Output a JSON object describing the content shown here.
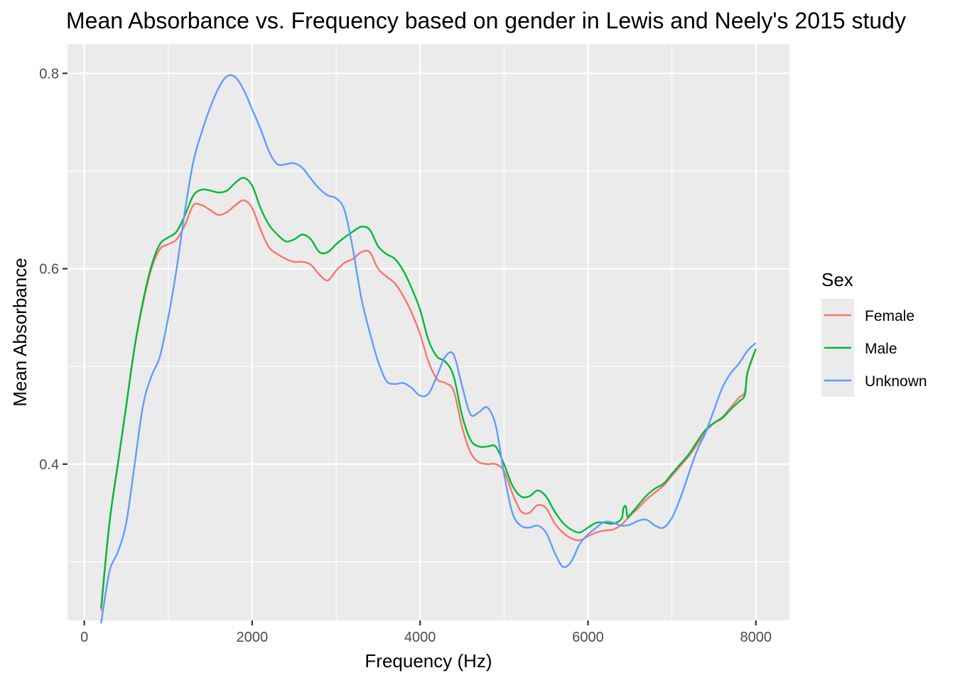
{
  "chart_data": {
    "type": "line",
    "title": "Mean Absorbance vs. Frequency based on gender in Lewis and Neely's 2015 study",
    "xlabel": "Frequency (Hz)",
    "ylabel": "Mean Absorbance",
    "xlim": [
      -200,
      8400
    ],
    "ylim": [
      0.24,
      0.83
    ],
    "x_ticks": [
      0,
      2000,
      4000,
      6000,
      8000
    ],
    "x_tick_labels": [
      "0",
      "2000",
      "4000",
      "6000",
      "8000"
    ],
    "y_ticks": [
      0.4,
      0.6,
      0.8
    ],
    "y_tick_labels": [
      "0.4",
      "0.6",
      "0.8"
    ],
    "y_minor_ticks": [
      0.3,
      0.5,
      0.7
    ],
    "x_minor_ticks": [
      1000,
      3000,
      5000,
      7000
    ],
    "grid": true,
    "legend": {
      "title": "Sex",
      "position": "right"
    },
    "series": [
      {
        "name": "Female",
        "color": "#F8766D",
        "points": [
          [
            200,
            0.25
          ],
          [
            300,
            0.34
          ],
          [
            400,
            0.4
          ],
          [
            500,
            0.46
          ],
          [
            600,
            0.52
          ],
          [
            700,
            0.565
          ],
          [
            800,
            0.6
          ],
          [
            900,
            0.62
          ],
          [
            1000,
            0.625
          ],
          [
            1100,
            0.63
          ],
          [
            1200,
            0.645
          ],
          [
            1300,
            0.665
          ],
          [
            1400,
            0.665
          ],
          [
            1500,
            0.66
          ],
          [
            1600,
            0.655
          ],
          [
            1700,
            0.658
          ],
          [
            1800,
            0.665
          ],
          [
            1900,
            0.67
          ],
          [
            2000,
            0.662
          ],
          [
            2100,
            0.64
          ],
          [
            2200,
            0.622
          ],
          [
            2300,
            0.615
          ],
          [
            2400,
            0.61
          ],
          [
            2500,
            0.607
          ],
          [
            2600,
            0.607
          ],
          [
            2700,
            0.604
          ],
          [
            2800,
            0.594
          ],
          [
            2900,
            0.588
          ],
          [
            3000,
            0.598
          ],
          [
            3100,
            0.606
          ],
          [
            3200,
            0.61
          ],
          [
            3300,
            0.617
          ],
          [
            3400,
            0.617
          ],
          [
            3500,
            0.6
          ],
          [
            3600,
            0.592
          ],
          [
            3700,
            0.585
          ],
          [
            3800,
            0.572
          ],
          [
            3900,
            0.555
          ],
          [
            4000,
            0.533
          ],
          [
            4100,
            0.505
          ],
          [
            4200,
            0.487
          ],
          [
            4300,
            0.483
          ],
          [
            4400,
            0.475
          ],
          [
            4500,
            0.438
          ],
          [
            4600,
            0.412
          ],
          [
            4700,
            0.402
          ],
          [
            4800,
            0.4
          ],
          [
            4900,
            0.4
          ],
          [
            5000,
            0.393
          ],
          [
            5100,
            0.37
          ],
          [
            5200,
            0.352
          ],
          [
            5300,
            0.35
          ],
          [
            5400,
            0.358
          ],
          [
            5500,
            0.355
          ],
          [
            5600,
            0.34
          ],
          [
            5700,
            0.33
          ],
          [
            5800,
            0.324
          ],
          [
            5900,
            0.322
          ],
          [
            6000,
            0.326
          ],
          [
            6100,
            0.33
          ],
          [
            6200,
            0.332
          ],
          [
            6300,
            0.333
          ],
          [
            6400,
            0.338
          ],
          [
            6500,
            0.347
          ],
          [
            6600,
            0.355
          ],
          [
            6700,
            0.364
          ],
          [
            6800,
            0.371
          ],
          [
            6900,
            0.378
          ],
          [
            7000,
            0.388
          ],
          [
            7100,
            0.398
          ],
          [
            7200,
            0.408
          ],
          [
            7300,
            0.42
          ],
          [
            7400,
            0.433
          ],
          [
            7500,
            0.442
          ],
          [
            7600,
            0.448
          ],
          [
            7700,
            0.458
          ],
          [
            7800,
            0.468
          ],
          [
            7870,
            0.474
          ],
          [
            7900,
            0.494
          ],
          [
            8000,
            0.518
          ]
        ]
      },
      {
        "name": "Male",
        "color": "#00BA38",
        "points": [
          [
            200,
            0.253
          ],
          [
            300,
            0.34
          ],
          [
            400,
            0.4
          ],
          [
            500,
            0.46
          ],
          [
            600,
            0.52
          ],
          [
            700,
            0.567
          ],
          [
            800,
            0.603
          ],
          [
            900,
            0.625
          ],
          [
            1000,
            0.632
          ],
          [
            1100,
            0.638
          ],
          [
            1200,
            0.655
          ],
          [
            1300,
            0.675
          ],
          [
            1400,
            0.681
          ],
          [
            1500,
            0.68
          ],
          [
            1600,
            0.678
          ],
          [
            1700,
            0.68
          ],
          [
            1800,
            0.688
          ],
          [
            1900,
            0.693
          ],
          [
            2000,
            0.685
          ],
          [
            2100,
            0.662
          ],
          [
            2200,
            0.645
          ],
          [
            2300,
            0.635
          ],
          [
            2400,
            0.628
          ],
          [
            2500,
            0.63
          ],
          [
            2600,
            0.635
          ],
          [
            2700,
            0.63
          ],
          [
            2800,
            0.617
          ],
          [
            2900,
            0.617
          ],
          [
            3000,
            0.625
          ],
          [
            3100,
            0.632
          ],
          [
            3200,
            0.638
          ],
          [
            3300,
            0.643
          ],
          [
            3400,
            0.64
          ],
          [
            3500,
            0.623
          ],
          [
            3600,
            0.615
          ],
          [
            3700,
            0.61
          ],
          [
            3800,
            0.598
          ],
          [
            3900,
            0.58
          ],
          [
            4000,
            0.558
          ],
          [
            4100,
            0.527
          ],
          [
            4200,
            0.51
          ],
          [
            4300,
            0.505
          ],
          [
            4400,
            0.49
          ],
          [
            4500,
            0.45
          ],
          [
            4600,
            0.425
          ],
          [
            4700,
            0.418
          ],
          [
            4800,
            0.418
          ],
          [
            4900,
            0.418
          ],
          [
            5000,
            0.4
          ],
          [
            5100,
            0.378
          ],
          [
            5200,
            0.367
          ],
          [
            5300,
            0.367
          ],
          [
            5400,
            0.373
          ],
          [
            5500,
            0.367
          ],
          [
            5600,
            0.352
          ],
          [
            5700,
            0.34
          ],
          [
            5800,
            0.333
          ],
          [
            5900,
            0.33
          ],
          [
            6000,
            0.335
          ],
          [
            6100,
            0.34
          ],
          [
            6200,
            0.34
          ],
          [
            6300,
            0.339
          ],
          [
            6400,
            0.344
          ],
          [
            6420,
            0.354
          ],
          [
            6450,
            0.357
          ],
          [
            6470,
            0.346
          ],
          [
            6500,
            0.348
          ],
          [
            6600,
            0.358
          ],
          [
            6700,
            0.368
          ],
          [
            6800,
            0.375
          ],
          [
            6900,
            0.38
          ],
          [
            7000,
            0.39
          ],
          [
            7100,
            0.4
          ],
          [
            7200,
            0.41
          ],
          [
            7300,
            0.423
          ],
          [
            7400,
            0.435
          ],
          [
            7500,
            0.442
          ],
          [
            7600,
            0.447
          ],
          [
            7700,
            0.456
          ],
          [
            7800,
            0.464
          ],
          [
            7870,
            0.471
          ],
          [
            7900,
            0.493
          ],
          [
            8000,
            0.518
          ]
        ]
      },
      {
        "name": "Unknown",
        "color": "#619CFF",
        "points": [
          [
            200,
            0.237
          ],
          [
            300,
            0.29
          ],
          [
            400,
            0.31
          ],
          [
            500,
            0.34
          ],
          [
            600,
            0.4
          ],
          [
            700,
            0.46
          ],
          [
            800,
            0.49
          ],
          [
            900,
            0.51
          ],
          [
            1000,
            0.55
          ],
          [
            1100,
            0.6
          ],
          [
            1200,
            0.66
          ],
          [
            1300,
            0.71
          ],
          [
            1400,
            0.74
          ],
          [
            1500,
            0.765
          ],
          [
            1600,
            0.785
          ],
          [
            1700,
            0.797
          ],
          [
            1800,
            0.796
          ],
          [
            1900,
            0.783
          ],
          [
            2000,
            0.763
          ],
          [
            2100,
            0.743
          ],
          [
            2200,
            0.72
          ],
          [
            2300,
            0.707
          ],
          [
            2400,
            0.707
          ],
          [
            2500,
            0.708
          ],
          [
            2600,
            0.703
          ],
          [
            2700,
            0.692
          ],
          [
            2800,
            0.682
          ],
          [
            2900,
            0.675
          ],
          [
            3000,
            0.672
          ],
          [
            3100,
            0.66
          ],
          [
            3200,
            0.62
          ],
          [
            3300,
            0.57
          ],
          [
            3400,
            0.535
          ],
          [
            3500,
            0.505
          ],
          [
            3600,
            0.485
          ],
          [
            3700,
            0.482
          ],
          [
            3800,
            0.483
          ],
          [
            3900,
            0.478
          ],
          [
            4000,
            0.47
          ],
          [
            4100,
            0.472
          ],
          [
            4200,
            0.49
          ],
          [
            4300,
            0.51
          ],
          [
            4400,
            0.512
          ],
          [
            4500,
            0.48
          ],
          [
            4600,
            0.451
          ],
          [
            4700,
            0.453
          ],
          [
            4800,
            0.458
          ],
          [
            4900,
            0.44
          ],
          [
            5000,
            0.39
          ],
          [
            5100,
            0.35
          ],
          [
            5200,
            0.337
          ],
          [
            5300,
            0.335
          ],
          [
            5400,
            0.337
          ],
          [
            5500,
            0.33
          ],
          [
            5600,
            0.31
          ],
          [
            5700,
            0.295
          ],
          [
            5800,
            0.3
          ],
          [
            5900,
            0.318
          ],
          [
            6000,
            0.328
          ],
          [
            6100,
            0.335
          ],
          [
            6200,
            0.341
          ],
          [
            6300,
            0.34
          ],
          [
            6400,
            0.337
          ],
          [
            6500,
            0.338
          ],
          [
            6600,
            0.342
          ],
          [
            6700,
            0.343
          ],
          [
            6800,
            0.337
          ],
          [
            6900,
            0.335
          ],
          [
            7000,
            0.345
          ],
          [
            7100,
            0.365
          ],
          [
            7200,
            0.39
          ],
          [
            7300,
            0.414
          ],
          [
            7400,
            0.432
          ],
          [
            7500,
            0.455
          ],
          [
            7600,
            0.478
          ],
          [
            7700,
            0.493
          ],
          [
            7800,
            0.503
          ],
          [
            7900,
            0.516
          ],
          [
            8000,
            0.524
          ]
        ]
      }
    ]
  }
}
